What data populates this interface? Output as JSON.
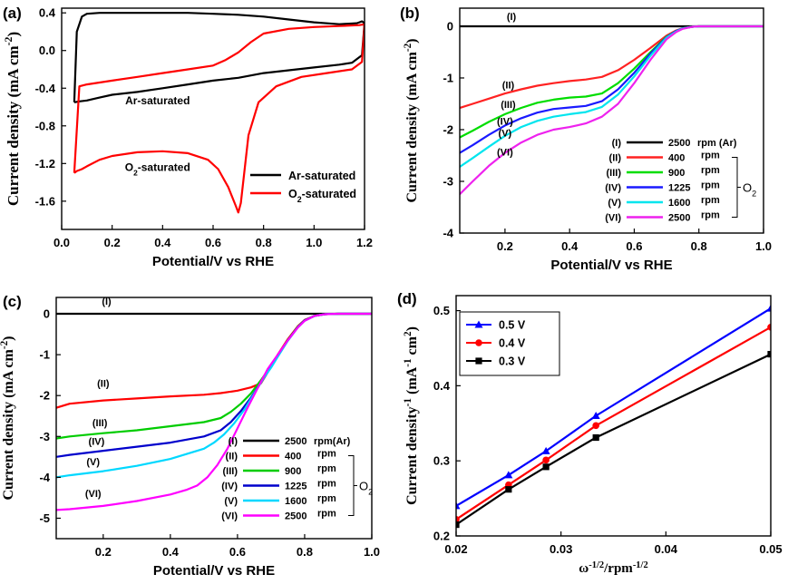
{
  "figure": {
    "layout": "2x2 panels"
  },
  "chart_data": [
    {
      "panel_label": "(a)",
      "type": "line",
      "xlabel": "Potential/V vs RHE",
      "ylabel": "Current density (mA cm",
      "ylabel_sup": "-2",
      "ylabel_close": ")",
      "xlim": [
        0.0,
        1.2
      ],
      "ylim": [
        -1.9,
        0.45
      ],
      "xticks": [
        0.0,
        0.2,
        0.4,
        0.6,
        0.8,
        1.0,
        1.2
      ],
      "xticklabels": [
        "0.0",
        "0.2",
        "0.4",
        "0.6",
        "0.8",
        "1.0",
        "1.2"
      ],
      "yticks": [
        0.4,
        0.0,
        -0.4,
        -0.8,
        -1.2,
        -1.6
      ],
      "yticklabels": [
        "0.4",
        "0.0",
        "-0.4",
        "-0.8",
        "-1.2",
        "-1.6"
      ],
      "grid": false,
      "legend_position": "bottom-right",
      "annotations": [
        {
          "text": "Ar-saturated",
          "x": 0.38,
          "y": -0.57
        },
        {
          "text": "O",
          "sub": "2",
          "tail": "-saturated",
          "x": 0.38,
          "y": -1.28
        }
      ],
      "series": [
        {
          "name": "Ar-saturated",
          "color": "#000000",
          "x": [
            0.05,
            0.06,
            0.08,
            0.1,
            0.15,
            0.2,
            0.3,
            0.4,
            0.5,
            0.6,
            0.7,
            0.8,
            0.9,
            1.0,
            1.1,
            1.17,
            1.19,
            1.2,
            1.19,
            1.15,
            1.1,
            1.0,
            0.9,
            0.8,
            0.7,
            0.6,
            0.5,
            0.4,
            0.3,
            0.2,
            0.15,
            0.1,
            0.07,
            0.05
          ],
          "y": [
            -0.55,
            0.2,
            0.36,
            0.39,
            0.4,
            0.4,
            0.4,
            0.4,
            0.4,
            0.39,
            0.38,
            0.36,
            0.33,
            0.3,
            0.28,
            0.29,
            0.31,
            0.29,
            -0.05,
            -0.13,
            -0.15,
            -0.18,
            -0.21,
            -0.24,
            -0.29,
            -0.32,
            -0.36,
            -0.4,
            -0.44,
            -0.47,
            -0.5,
            -0.53,
            -0.54,
            -0.55
          ]
        },
        {
          "name": "O2-saturated",
          "legend_main": "O",
          "legend_sub": "2",
          "legend_tail": "-saturated",
          "color": "#ff0000",
          "x": [
            0.05,
            0.06,
            0.08,
            0.1,
            0.15,
            0.2,
            0.3,
            0.4,
            0.5,
            0.58,
            0.62,
            0.66,
            0.69,
            0.7,
            0.71,
            0.72,
            0.74,
            0.78,
            0.85,
            0.95,
            1.05,
            1.15,
            1.19,
            1.2,
            1.18,
            1.1,
            1.0,
            0.9,
            0.8,
            0.75,
            0.7,
            0.65,
            0.6,
            0.5,
            0.4,
            0.3,
            0.2,
            0.1,
            0.07,
            0.05
          ],
          "y": [
            -1.3,
            -1.28,
            -1.26,
            -1.23,
            -1.16,
            -1.12,
            -1.08,
            -1.07,
            -1.09,
            -1.16,
            -1.26,
            -1.45,
            -1.65,
            -1.72,
            -1.62,
            -1.38,
            -0.9,
            -0.55,
            -0.38,
            -0.28,
            -0.24,
            -0.2,
            -0.12,
            0.28,
            0.27,
            0.26,
            0.25,
            0.23,
            0.18,
            0.09,
            -0.02,
            -0.1,
            -0.16,
            -0.2,
            -0.24,
            -0.28,
            -0.32,
            -0.36,
            -0.38,
            -1.3
          ]
        }
      ]
    },
    {
      "panel_label": "(b)",
      "type": "line",
      "xlabel": "Potential/V vs RHE",
      "ylabel": "Current density (mA cm",
      "ylabel_sup": "-2",
      "ylabel_close": ")",
      "xlim": [
        0.06,
        1.0
      ],
      "ylim": [
        -4.0,
        0.35
      ],
      "xticks": [
        0.2,
        0.4,
        0.6,
        0.8,
        1.0
      ],
      "xticklabels": [
        "0.2",
        "0.4",
        "0.6",
        "0.8",
        "1.0"
      ],
      "yticks": [
        0,
        -1,
        -2,
        -3,
        -4
      ],
      "yticklabels": [
        "0",
        "-1",
        "-2",
        "-3",
        "-4"
      ],
      "grid": false,
      "legend_position": "bottom-right",
      "legend_group_label": "O",
      "legend_group_sub": "2",
      "curve_labels": [
        {
          "text": "(I)",
          "x": 0.22,
          "y": 0.12
        },
        {
          "text": "(II)",
          "x": 0.21,
          "y": -1.2
        },
        {
          "text": "(III)",
          "x": 0.21,
          "y": -1.58
        },
        {
          "text": "(IV)",
          "x": 0.2,
          "y": -1.9
        },
        {
          "text": "(V)",
          "x": 0.2,
          "y": -2.13
        },
        {
          "text": "(VI)",
          "x": 0.2,
          "y": -2.5
        }
      ],
      "series": [
        {
          "name": "2500 rpm (Ar)",
          "legend_id": "(I)",
          "legend_speed": "2500",
          "legend_unit": "rpm (Ar)",
          "color": "#000000",
          "x": [
            0.06,
            0.2,
            0.4,
            0.6,
            0.8,
            1.0
          ],
          "y": [
            0.0,
            0.0,
            0.0,
            0.0,
            0.0,
            0.0
          ]
        },
        {
          "name": "400 rpm",
          "legend_id": "(II)",
          "legend_speed": "400",
          "legend_unit": "rpm",
          "color": "#ff2222",
          "x": [
            0.06,
            0.1,
            0.15,
            0.2,
            0.25,
            0.3,
            0.35,
            0.4,
            0.45,
            0.5,
            0.55,
            0.6,
            0.65,
            0.7,
            0.73,
            0.75,
            0.78,
            0.8,
            0.85,
            0.9,
            1.0
          ],
          "y": [
            -1.58,
            -1.5,
            -1.4,
            -1.3,
            -1.22,
            -1.15,
            -1.1,
            -1.06,
            -1.03,
            -0.98,
            -0.85,
            -0.65,
            -0.42,
            -0.18,
            -0.08,
            -0.04,
            -0.01,
            0.0,
            0.0,
            0.0,
            0.0
          ]
        },
        {
          "name": "900 rpm",
          "legend_id": "(III)",
          "legend_speed": "900",
          "legend_unit": "rpm",
          "color": "#00dd00",
          "x": [
            0.06,
            0.1,
            0.15,
            0.2,
            0.25,
            0.3,
            0.35,
            0.4,
            0.45,
            0.5,
            0.55,
            0.6,
            0.65,
            0.7,
            0.73,
            0.75,
            0.78,
            0.8,
            0.85,
            0.9,
            1.0
          ],
          "y": [
            -2.15,
            -2.02,
            -1.85,
            -1.7,
            -1.58,
            -1.48,
            -1.42,
            -1.38,
            -1.36,
            -1.3,
            -1.1,
            -0.82,
            -0.5,
            -0.2,
            -0.09,
            -0.04,
            -0.01,
            0.0,
            0.0,
            0.0,
            0.0
          ]
        },
        {
          "name": "1225 rpm",
          "legend_id": "(IV)",
          "legend_speed": "1225",
          "legend_unit": "rpm",
          "color": "#1a1aff",
          "x": [
            0.06,
            0.1,
            0.15,
            0.2,
            0.25,
            0.3,
            0.35,
            0.4,
            0.45,
            0.5,
            0.55,
            0.6,
            0.65,
            0.7,
            0.73,
            0.75,
            0.78,
            0.8,
            0.85,
            0.9,
            1.0
          ],
          "y": [
            -2.45,
            -2.3,
            -2.1,
            -1.92,
            -1.78,
            -1.67,
            -1.6,
            -1.57,
            -1.54,
            -1.45,
            -1.22,
            -0.9,
            -0.53,
            -0.21,
            -0.09,
            -0.04,
            -0.01,
            0.0,
            0.0,
            0.0,
            0.0
          ]
        },
        {
          "name": "1600 rpm",
          "legend_id": "(V)",
          "legend_speed": "1600",
          "legend_unit": "rpm",
          "color": "#00e5ee",
          "x": [
            0.06,
            0.1,
            0.15,
            0.2,
            0.25,
            0.3,
            0.35,
            0.4,
            0.45,
            0.5,
            0.55,
            0.6,
            0.65,
            0.7,
            0.73,
            0.75,
            0.78,
            0.8,
            0.85,
            0.9,
            1.0
          ],
          "y": [
            -2.72,
            -2.55,
            -2.33,
            -2.12,
            -1.95,
            -1.83,
            -1.75,
            -1.7,
            -1.66,
            -1.56,
            -1.32,
            -0.97,
            -0.57,
            -0.22,
            -0.1,
            -0.04,
            -0.01,
            0.0,
            0.0,
            0.0,
            0.0
          ]
        },
        {
          "name": "2500 rpm",
          "legend_id": "(VI)",
          "legend_speed": "2500",
          "legend_unit": "rpm",
          "color": "#ee22ee",
          "x": [
            0.06,
            0.1,
            0.15,
            0.2,
            0.25,
            0.3,
            0.35,
            0.4,
            0.45,
            0.5,
            0.55,
            0.6,
            0.65,
            0.7,
            0.73,
            0.75,
            0.78,
            0.8,
            0.85,
            0.9,
            1.0
          ],
          "y": [
            -3.25,
            -3.0,
            -2.7,
            -2.45,
            -2.25,
            -2.1,
            -2.0,
            -1.95,
            -1.88,
            -1.75,
            -1.5,
            -1.1,
            -0.65,
            -0.25,
            -0.11,
            -0.05,
            -0.01,
            0.0,
            0.0,
            0.0,
            0.0
          ]
        }
      ]
    },
    {
      "panel_label": "(c)",
      "type": "line",
      "xlabel": "Potential/V vs RHE",
      "ylabel": "Current density (mA cm",
      "ylabel_sup": "-2",
      "ylabel_close": ")",
      "xlim": [
        0.06,
        1.0
      ],
      "ylim": [
        -5.5,
        0.4
      ],
      "xticks": [
        0.2,
        0.4,
        0.6,
        0.8,
        1.0
      ],
      "xticklabels": [
        "0.2",
        "0.4",
        "0.6",
        "0.8",
        "1.0"
      ],
      "yticks": [
        0,
        -1,
        -2,
        -3,
        -4,
        -5
      ],
      "yticklabels": [
        "0",
        "-1",
        "-2",
        "-3",
        "-4",
        "-5"
      ],
      "grid": false,
      "legend_position": "bottom-right",
      "legend_group_label": "O",
      "legend_group_sub": "2",
      "curve_labels": [
        {
          "text": "(I)",
          "x": 0.21,
          "y": 0.22
        },
        {
          "text": "(II)",
          "x": 0.2,
          "y": -1.78
        },
        {
          "text": "(III)",
          "x": 0.19,
          "y": -2.75
        },
        {
          "text": "(IV)",
          "x": 0.18,
          "y": -3.2
        },
        {
          "text": "(V)",
          "x": 0.17,
          "y": -3.7
        },
        {
          "text": "(VI)",
          "x": 0.17,
          "y": -4.48
        }
      ],
      "series": [
        {
          "name": "2500 rpm(Ar)",
          "legend_id": "(I)",
          "legend_speed": "2500",
          "legend_unit": "rpm(Ar)",
          "color": "#000000",
          "x": [
            0.06,
            0.2,
            0.4,
            0.6,
            0.8,
            1.0
          ],
          "y": [
            0.0,
            0.0,
            0.0,
            0.0,
            0.0,
            0.0
          ]
        },
        {
          "name": "400 rpm",
          "legend_id": "(II)",
          "legend_speed": "400",
          "legend_unit": "rpm",
          "color": "#ff0000",
          "x": [
            0.06,
            0.1,
            0.2,
            0.3,
            0.4,
            0.5,
            0.55,
            0.6,
            0.64,
            0.67,
            0.7,
            0.72,
            0.75,
            0.78,
            0.8,
            0.83,
            0.86,
            0.9,
            1.0
          ],
          "y": [
            -2.3,
            -2.2,
            -2.12,
            -2.07,
            -2.02,
            -1.98,
            -1.94,
            -1.88,
            -1.8,
            -1.7,
            -1.3,
            -1.0,
            -0.62,
            -0.3,
            -0.15,
            -0.05,
            -0.01,
            0.0,
            0.0
          ]
        },
        {
          "name": "900 rpm",
          "legend_id": "(III)",
          "legend_speed": "900",
          "legend_unit": "rpm",
          "color": "#00cc00",
          "x": [
            0.06,
            0.1,
            0.2,
            0.3,
            0.4,
            0.5,
            0.55,
            0.58,
            0.61,
            0.64,
            0.67,
            0.7,
            0.72,
            0.75,
            0.78,
            0.8,
            0.83,
            0.86,
            0.9,
            1.0
          ],
          "y": [
            -3.05,
            -3.0,
            -2.92,
            -2.85,
            -2.75,
            -2.65,
            -2.55,
            -2.4,
            -2.2,
            -1.95,
            -1.62,
            -1.28,
            -1.02,
            -0.64,
            -0.31,
            -0.16,
            -0.05,
            -0.01,
            0.0,
            0.0
          ]
        },
        {
          "name": "1225 rpm",
          "legend_id": "(IV)",
          "legend_speed": "1225",
          "legend_unit": "rpm",
          "color": "#0000cc",
          "x": [
            0.06,
            0.1,
            0.2,
            0.3,
            0.4,
            0.5,
            0.55,
            0.58,
            0.61,
            0.64,
            0.67,
            0.7,
            0.72,
            0.75,
            0.78,
            0.8,
            0.83,
            0.86,
            0.9,
            1.0
          ],
          "y": [
            -3.5,
            -3.45,
            -3.35,
            -3.25,
            -3.15,
            -3.0,
            -2.85,
            -2.65,
            -2.38,
            -2.05,
            -1.68,
            -1.3,
            -1.03,
            -0.65,
            -0.32,
            -0.16,
            -0.05,
            -0.01,
            0.0,
            0.0
          ]
        },
        {
          "name": "1600 rpm",
          "legend_id": "(V)",
          "legend_speed": "1600",
          "legend_unit": "rpm",
          "color": "#00d8ff",
          "x": [
            0.06,
            0.1,
            0.2,
            0.3,
            0.4,
            0.5,
            0.53,
            0.56,
            0.59,
            0.62,
            0.65,
            0.68,
            0.7,
            0.72,
            0.75,
            0.78,
            0.8,
            0.83,
            0.86,
            0.9,
            1.0
          ],
          "y": [
            -4.0,
            -3.95,
            -3.85,
            -3.72,
            -3.55,
            -3.3,
            -3.15,
            -2.95,
            -2.68,
            -2.35,
            -1.95,
            -1.55,
            -1.32,
            -1.05,
            -0.66,
            -0.33,
            -0.17,
            -0.05,
            -0.01,
            0.0,
            0.0
          ]
        },
        {
          "name": "2500 rpm",
          "legend_id": "(VI)",
          "legend_speed": "2500",
          "legend_unit": "rpm",
          "color": "#ff00ff",
          "x": [
            0.06,
            0.1,
            0.2,
            0.3,
            0.4,
            0.45,
            0.48,
            0.51,
            0.54,
            0.57,
            0.6,
            0.63,
            0.66,
            0.69,
            0.72,
            0.75,
            0.78,
            0.8,
            0.83,
            0.86,
            0.9,
            1.0
          ],
          "y": [
            -4.8,
            -4.78,
            -4.7,
            -4.58,
            -4.42,
            -4.3,
            -4.2,
            -4.0,
            -3.7,
            -3.3,
            -2.8,
            -2.3,
            -1.82,
            -1.35,
            -1.0,
            -0.65,
            -0.33,
            -0.17,
            -0.05,
            -0.01,
            0.0,
            0.0
          ]
        }
      ]
    },
    {
      "panel_label": "(d)",
      "type": "line",
      "xlabel": "ω",
      "xlabel_sup1": "-1/2",
      "xlabel_mid": "/rpm",
      "xlabel_sup2": "-1/2",
      "ylabel": "Current density",
      "ylabel_sup1": "-1",
      "ylabel_mid": "(mA",
      "ylabel_sup2": "-1",
      "ylabel_tail": "cm",
      "ylabel_sup3": "2",
      "ylabel_close": ")",
      "xlim": [
        0.02,
        0.05
      ],
      "ylim": [
        0.2,
        0.52
      ],
      "xticks": [
        0.02,
        0.03,
        0.04,
        0.05
      ],
      "xticklabels": [
        "0.02",
        "0.03",
        "0.04",
        "0.05"
      ],
      "yticks": [
        0.2,
        0.3,
        0.4,
        0.5
      ],
      "yticklabels": [
        "0.2",
        "0.3",
        "0.4",
        "0.5"
      ],
      "grid": false,
      "legend_position": "top-left",
      "series": [
        {
          "name": "0.5 V",
          "color": "#0000ff",
          "marker": "triangle",
          "x": [
            0.02,
            0.025,
            0.02857,
            0.03333,
            0.05
          ],
          "y": [
            0.24,
            0.281,
            0.313,
            0.36,
            0.503
          ]
        },
        {
          "name": "0.4 V",
          "color": "#ff0000",
          "marker": "circle",
          "x": [
            0.02,
            0.025,
            0.02857,
            0.03333,
            0.05
          ],
          "y": [
            0.222,
            0.268,
            0.301,
            0.347,
            0.478
          ]
        },
        {
          "name": "0.3 V",
          "color": "#000000",
          "marker": "square",
          "x": [
            0.02,
            0.025,
            0.02857,
            0.03333,
            0.05
          ],
          "y": [
            0.215,
            0.262,
            0.292,
            0.331,
            0.442
          ]
        }
      ]
    }
  ]
}
